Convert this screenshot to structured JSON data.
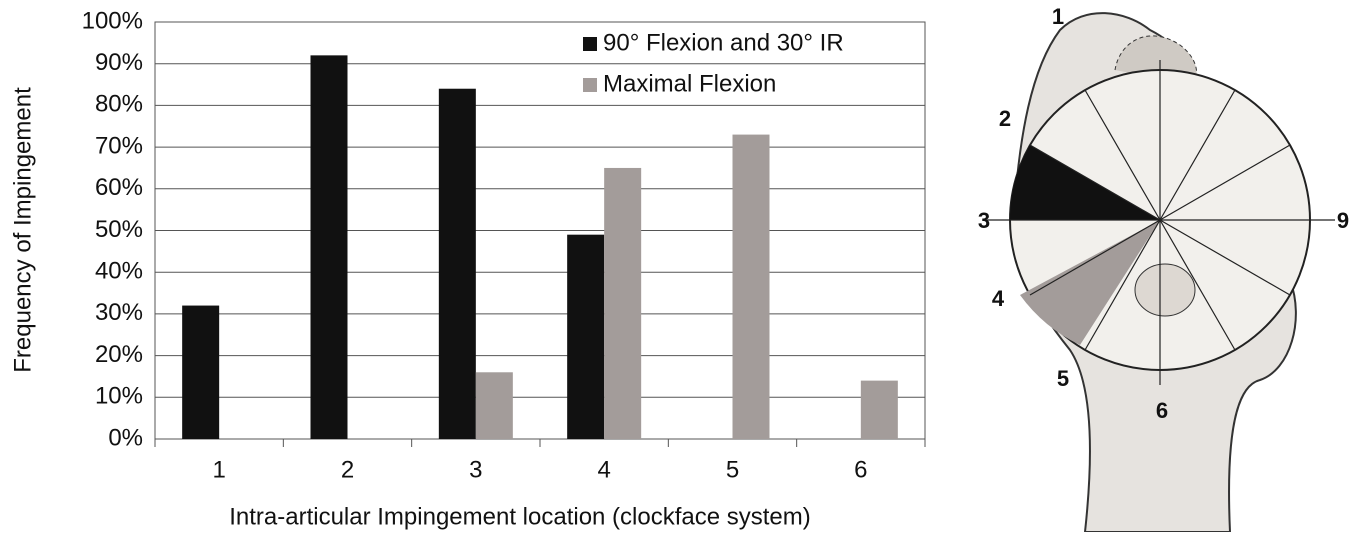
{
  "chart_data": {
    "type": "bar",
    "x_label": "Intra-articular Impingement location (clockface system)",
    "y_label": "Frequency of Impingement",
    "categories": [
      "1",
      "2",
      "3",
      "4",
      "5",
      "6"
    ],
    "series": [
      {
        "name": "90° Flexion and 30° IR",
        "color": "#111111",
        "values": [
          32,
          92,
          84,
          49,
          0,
          0
        ]
      },
      {
        "name": "Maximal Flexion",
        "color": "#a39c9a",
        "values": [
          0,
          0,
          16,
          65,
          73,
          14
        ]
      }
    ],
    "ylim": [
      0,
      100
    ],
    "yticks": [
      {
        "value": 0,
        "label": "0%"
      },
      {
        "value": 10,
        "label": "10%"
      },
      {
        "value": 20,
        "label": "20%"
      },
      {
        "value": 30,
        "label": "30%"
      },
      {
        "value": 40,
        "label": "40%"
      },
      {
        "value": 50,
        "label": "50%"
      },
      {
        "value": 60,
        "label": "60%"
      },
      {
        "value": 70,
        "label": "70%"
      },
      {
        "value": 80,
        "label": "80%"
      },
      {
        "value": 90,
        "label": "90%"
      },
      {
        "value": 100,
        "label": "100%"
      }
    ],
    "grid": true,
    "legend": "top-right"
  },
  "diagram": {
    "labels": [
      "1",
      "2",
      "3",
      "4",
      "5",
      "6",
      "9"
    ]
  }
}
